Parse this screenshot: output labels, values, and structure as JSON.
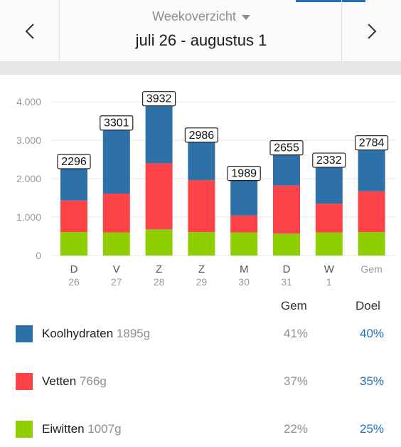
{
  "header": {
    "view_label": "Weekoverzicht",
    "date_range": "juli 26 - augustus 1"
  },
  "colors": {
    "koolhydraten": "#2e70a8",
    "vetten": "#fd4348",
    "eiwitten": "#8fce00",
    "accent": "#1e6fb5"
  },
  "chart_data": {
    "type": "bar",
    "stacked": true,
    "categories": [
      {
        "day": "D",
        "date": "26"
      },
      {
        "day": "V",
        "date": "27"
      },
      {
        "day": "Z",
        "date": "28"
      },
      {
        "day": "Z",
        "date": "29"
      },
      {
        "day": "M",
        "date": "30"
      },
      {
        "day": "D",
        "date": "31"
      },
      {
        "day": "W",
        "date": "1"
      },
      {
        "day": "Gem",
        "date": ""
      }
    ],
    "totals": [
      "2296",
      "3301",
      "3932",
      "2986",
      "1989",
      "2655",
      "2332",
      "2784"
    ],
    "series": [
      {
        "key": "eiwitten",
        "values": [
          610,
          600,
          680,
          610,
          600,
          570,
          600,
          610
        ]
      },
      {
        "key": "vetten",
        "values": [
          820,
          1010,
          1720,
          1350,
          440,
          1250,
          750,
          1060
        ]
      },
      {
        "key": "koolhydraten",
        "values": [
          866,
          1691,
          1532,
          1026,
          949,
          835,
          982,
          1114
        ]
      }
    ],
    "y_ticks": [
      "0",
      "1.000",
      "2.000",
      "3.000",
      "4.000"
    ],
    "ylim": [
      0,
      4000
    ],
    "grid": true
  },
  "legend": {
    "gem_header": "Gem",
    "doel_header": "Doel",
    "rows": [
      {
        "name": "Koolhydraten",
        "amount": "1895g",
        "gem": "41%",
        "doel": "40%",
        "color": "#2e70a8"
      },
      {
        "name": "Vetten",
        "amount": "766g",
        "gem": "37%",
        "doel": "35%",
        "color": "#fd4348"
      },
      {
        "name": "Eiwitten",
        "amount": "1007g",
        "gem": "22%",
        "doel": "25%",
        "color": "#8fce00"
      }
    ]
  }
}
